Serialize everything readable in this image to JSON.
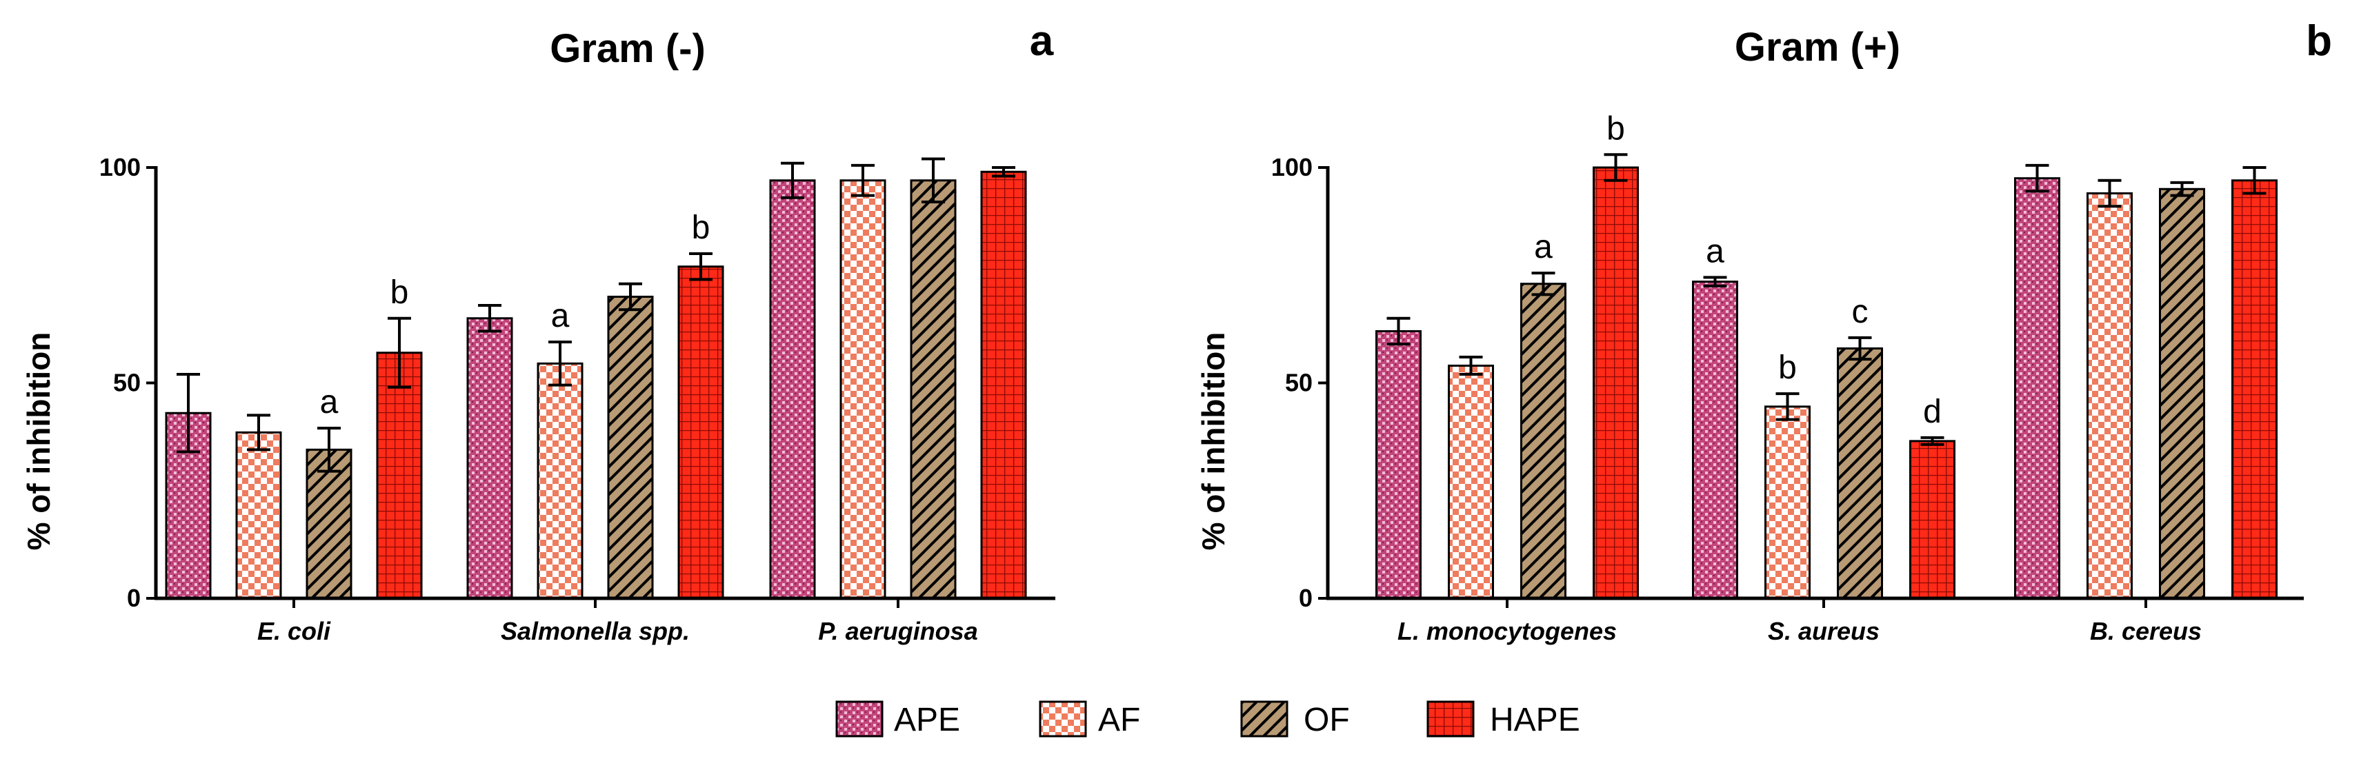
{
  "legend": [
    {
      "label": "APE",
      "pattern": "pattern-ape",
      "color": "#c2457a"
    },
    {
      "label": "AF",
      "pattern": "pattern-af",
      "color": "#f0876a"
    },
    {
      "label": "OF",
      "pattern": "pattern-of",
      "color": "#b89a74"
    },
    {
      "label": "HAPE",
      "pattern": "pattern-hape",
      "color": "#ff2a18"
    }
  ],
  "chart_data": [
    {
      "type": "bar",
      "panel": "a",
      "title": "Gram (-)",
      "ylabel": "% of inhibition",
      "xlabel": "",
      "ylim": [
        0,
        100
      ],
      "yticks": [
        0,
        50,
        100
      ],
      "categories": [
        "E. coli",
        "Salmonella spp.",
        "P. aeruginosa"
      ],
      "series": [
        {
          "name": "APE",
          "values": [
            43,
            65,
            97
          ],
          "errors": [
            9,
            3,
            4
          ],
          "sig": [
            "",
            "",
            ""
          ]
        },
        {
          "name": "AF",
          "values": [
            38.5,
            54.5,
            97
          ],
          "errors": [
            4,
            5,
            3.5
          ],
          "sig": [
            "",
            "a",
            ""
          ]
        },
        {
          "name": "OF",
          "values": [
            34.5,
            70,
            97
          ],
          "errors": [
            5,
            3,
            5
          ],
          "sig": [
            "a",
            "",
            ""
          ]
        },
        {
          "name": "HAPE",
          "values": [
            57,
            77,
            99
          ],
          "errors": [
            8,
            3,
            1
          ],
          "sig": [
            "b",
            "b",
            ""
          ]
        }
      ]
    },
    {
      "type": "bar",
      "panel": "b",
      "title": "Gram (+)",
      "ylabel": "% of inhibition",
      "xlabel": "",
      "ylim": [
        0,
        100
      ],
      "yticks": [
        0,
        50,
        100
      ],
      "categories": [
        "L. monocytogenes",
        "S. aureus",
        "B. cereus"
      ],
      "series": [
        {
          "name": "APE",
          "values": [
            62,
            73.5,
            97.5
          ],
          "errors": [
            3,
            1,
            3
          ],
          "sig": [
            "",
            "a",
            ""
          ]
        },
        {
          "name": "AF",
          "values": [
            54,
            44.5,
            94
          ],
          "errors": [
            2,
            3,
            3
          ],
          "sig": [
            "",
            "b",
            ""
          ]
        },
        {
          "name": "OF",
          "values": [
            73,
            58,
            95
          ],
          "errors": [
            2.5,
            2.5,
            1.5
          ],
          "sig": [
            "a",
            "c",
            ""
          ]
        },
        {
          "name": "HAPE",
          "values": [
            100,
            36.5,
            97
          ],
          "errors": [
            3,
            0.8,
            3
          ],
          "sig": [
            "b",
            "d",
            ""
          ]
        }
      ]
    }
  ]
}
